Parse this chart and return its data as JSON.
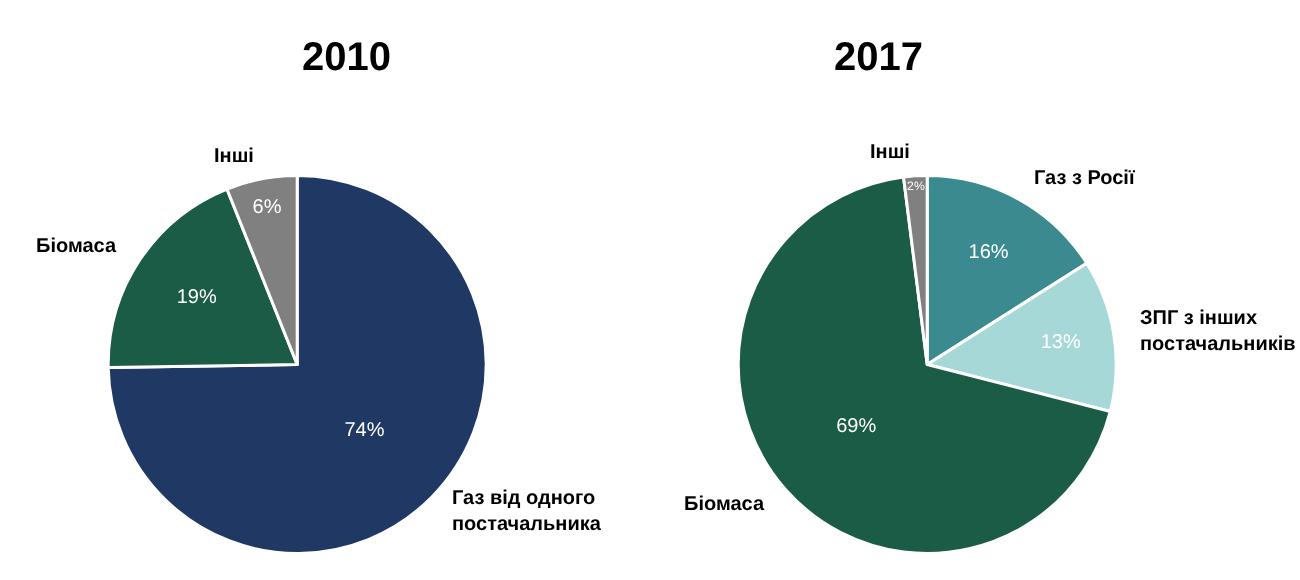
{
  "chart_data": [
    {
      "type": "pie",
      "title": "2010",
      "categories": [
        "Газ від одного постачальника",
        "Біомаса",
        "Інші"
      ],
      "values": [
        74,
        19,
        6
      ],
      "colors": [
        "#1f3864",
        "#1a5c45",
        "#808080"
      ],
      "value_labels": [
        "74%",
        "19%",
        "6%"
      ]
    },
    {
      "type": "pie",
      "title": "2017",
      "categories": [
        "Газ з Росії",
        "ЗПГ з інших постачальників",
        "Біомаса",
        "Інші"
      ],
      "values": [
        16,
        13,
        69,
        2
      ],
      "colors": [
        "#3a8a8f",
        "#a6d8d8",
        "#1a5c45",
        "#808080"
      ],
      "value_labels": [
        "16%",
        "13%",
        "69%",
        "2%"
      ]
    }
  ]
}
